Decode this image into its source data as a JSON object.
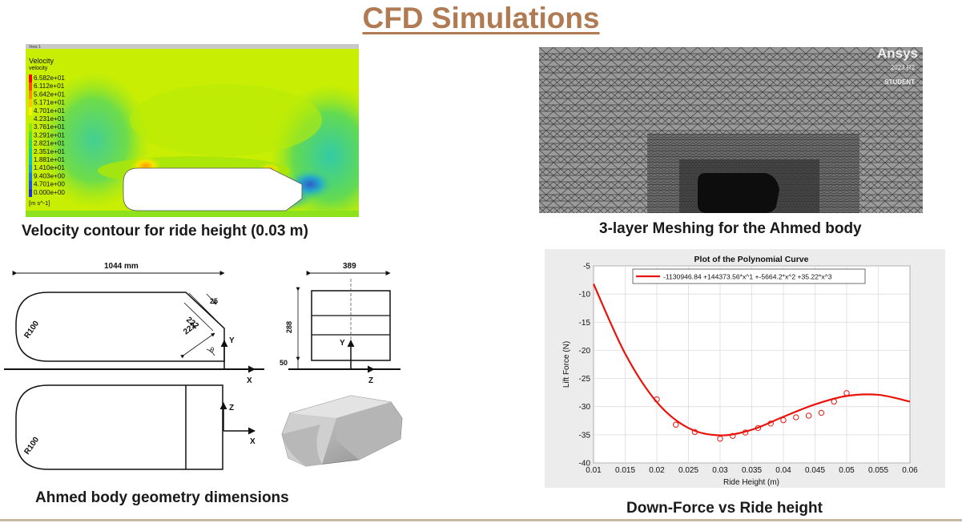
{
  "title": "CFD Simulations",
  "captions": {
    "velocity": "Velocity contour for ride height (0.03 m)",
    "mesh": "3-layer Meshing for the Ahmed body",
    "geometry": "Ahmed body geometry dimensions",
    "downforce": "Down-Force vs Ride height"
  },
  "contour": {
    "view_tab": "View 1",
    "legend_title": "Velocity",
    "legend_subtitle": "velocity",
    "legend_values": [
      "6.582e+01",
      "6.112e+01",
      "5.642e+01",
      "5.171e+01",
      "4.701e+01",
      "4.231e+01",
      "3.761e+01",
      "3.291e+01",
      "2.821e+01",
      "2.351e+01",
      "1.881e+01",
      "1.410e+01",
      "9.403e+00",
      "4.701e+00",
      "0.000e+00"
    ],
    "legend_unit": "[m s^-1]",
    "legend_colors": [
      "#ff0000",
      "#ff4a00",
      "#ff8f00",
      "#ffc400",
      "#f7f200",
      "#c5ef00",
      "#8de614",
      "#55dc3a",
      "#2bd66a",
      "#12ce9a",
      "#08c2c7",
      "#0aa2e2",
      "#1278ee",
      "#1a4ff0",
      "#1d2be6"
    ]
  },
  "mesh": {
    "logo_brand": "Ansys",
    "logo_version": "2023 R2",
    "logo_edition": "STUDENT"
  },
  "geometry": {
    "length": "1044 mm",
    "width": "389",
    "height": "288",
    "clearance": "50",
    "slant_top": "222",
    "slant_bottom": "222",
    "slant_offset": "25",
    "radius": "R100",
    "radius_plan": "R100",
    "angle": "θ",
    "axis_x": "X",
    "axis_y": "Y",
    "axis_z": "Z",
    "axis_x2": "X",
    "axis_y2": "Y",
    "axis_z2": "Z"
  },
  "chart_data": {
    "type": "line",
    "title": "Plot of the Polynomial Curve",
    "xlabel": "Ride Height (m)",
    "ylabel": "Lift Force (N)",
    "xlim": [
      0.01,
      0.06
    ],
    "ylim": [
      -40,
      -5
    ],
    "xticks": [
      "0.01",
      "0.015",
      "0.02",
      "0.025",
      "0.03",
      "0.035",
      "0.04",
      "0.045",
      "0.05",
      "0.055",
      "0.06"
    ],
    "yticks": [
      "-5",
      "-10",
      "-15",
      "-20",
      "-25",
      "-30",
      "-35",
      "-40"
    ],
    "grid": true,
    "legend": "top-center",
    "series": [
      {
        "name": "-1130946.84 +144373.56*x^1 +-5664.2*x^2 +35.22*x^3",
        "style": "line",
        "color": "#e8140c",
        "x": [
          0.01,
          0.015,
          0.02,
          0.025,
          0.03,
          0.035,
          0.04,
          0.045,
          0.05,
          0.055,
          0.06
        ],
        "y": [
          -8.2,
          -20.6,
          -29.2,
          -33.8,
          -35.1,
          -34.1,
          -31.8,
          -29.6,
          -28.1,
          -27.9,
          -29.1
        ]
      },
      {
        "name": "",
        "style": "markers",
        "color": "#e8140c",
        "x": [
          0.02,
          0.023,
          0.026,
          0.03,
          0.032,
          0.034,
          0.036,
          0.038,
          0.04,
          0.042,
          0.044,
          0.046,
          0.048,
          0.05
        ],
        "y": [
          -28.7,
          -33.2,
          -34.5,
          -35.7,
          -35.2,
          -34.6,
          -33.8,
          -33.0,
          -32.4,
          -31.9,
          -31.6,
          -31.1,
          -29.1,
          -27.6
        ]
      }
    ]
  }
}
